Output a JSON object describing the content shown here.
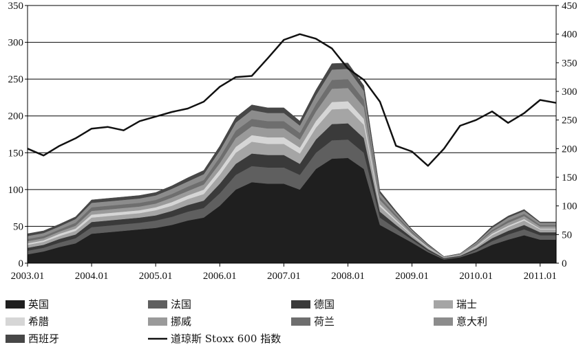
{
  "chart_data": {
    "type": "area",
    "stacked": true,
    "x_ticks": [
      "2003.01",
      "2004.01",
      "2005.01",
      "2006.01",
      "2007.01",
      "2008.01",
      "2009.01",
      "2010.01",
      "2011.01"
    ],
    "x_range": [
      "2003.01",
      "2011.04"
    ],
    "ylim_left": [
      0,
      350
    ],
    "yticks_left": [
      0,
      50,
      100,
      150,
      200,
      250,
      300,
      350
    ],
    "ylim_right": [
      0,
      450
    ],
    "yticks_right": [
      0,
      50,
      100,
      150,
      200,
      250,
      300,
      350,
      400,
      450
    ],
    "grid": "horizontal",
    "legend_position": "bottom",
    "x": [
      "2003.01",
      "2003.04",
      "2003.07",
      "2003.10",
      "2004.01",
      "2004.04",
      "2004.07",
      "2004.10",
      "2005.01",
      "2005.04",
      "2005.07",
      "2005.10",
      "2006.01",
      "2006.04",
      "2006.07",
      "2006.10",
      "2007.01",
      "2007.04",
      "2007.07",
      "2007.10",
      "2008.01",
      "2008.04",
      "2008.07",
      "2008.10",
      "2009.01",
      "2009.04",
      "2009.07",
      "2009.10",
      "2010.01",
      "2010.04",
      "2010.07",
      "2010.10",
      "2011.01",
      "2011.04"
    ],
    "series": [
      {
        "name": "英国",
        "color": "#1f1f1f",
        "values": [
          12,
          16,
          22,
          27,
          40,
          42,
          44,
          46,
          48,
          52,
          58,
          62,
          78,
          100,
          110,
          108,
          108,
          100,
          128,
          142,
          143,
          128,
          52,
          40,
          28,
          15,
          5,
          8,
          15,
          25,
          32,
          38,
          32,
          32
        ]
      },
      {
        "name": "法国",
        "color": "#5f5f5f",
        "values": [
          5,
          5,
          6,
          7,
          9,
          9,
          9,
          9,
          10,
          11,
          12,
          13,
          17,
          20,
          22,
          22,
          22,
          20,
          22,
          25,
          25,
          22,
          10,
          7,
          4,
          2,
          1,
          1,
          3,
          5,
          7,
          8,
          6,
          6
        ]
      },
      {
        "name": "德国",
        "color": "#3a3a3a",
        "values": [
          4,
          4,
          5,
          5,
          7,
          7,
          7,
          7,
          7,
          8,
          9,
          10,
          13,
          15,
          17,
          17,
          17,
          15,
          18,
          22,
          22,
          20,
          8,
          5,
          3,
          2,
          1,
          1,
          2,
          4,
          5,
          6,
          4,
          4
        ]
      },
      {
        "name": "瑞士",
        "color": "#a5a5a5",
        "values": [
          4,
          4,
          4,
          5,
          6,
          6,
          6,
          6,
          7,
          7,
          8,
          9,
          12,
          15,
          16,
          15,
          15,
          14,
          16,
          20,
          20,
          18,
          7,
          5,
          3,
          2,
          1,
          1,
          2,
          4,
          5,
          6,
          4,
          4
        ]
      },
      {
        "name": "希腊",
        "color": "#d6d6d6",
        "values": [
          2,
          2,
          3,
          3,
          4,
          4,
          4,
          4,
          4,
          5,
          5,
          6,
          7,
          8,
          9,
          9,
          9,
          8,
          9,
          10,
          10,
          8,
          3,
          2,
          1,
          1,
          0,
          0,
          1,
          2,
          2,
          2,
          1,
          1
        ]
      },
      {
        "name": "挪威",
        "color": "#9a9a9a",
        "values": [
          3,
          3,
          3,
          4,
          5,
          5,
          5,
          5,
          5,
          6,
          6,
          7,
          9,
          12,
          12,
          12,
          12,
          11,
          13,
          18,
          18,
          16,
          6,
          4,
          2,
          1,
          1,
          1,
          2,
          3,
          4,
          4,
          3,
          3
        ]
      },
      {
        "name": "荷兰",
        "color": "#6e6e6e",
        "values": [
          3,
          3,
          3,
          4,
          5,
          5,
          5,
          5,
          5,
          5,
          6,
          6,
          8,
          10,
          10,
          10,
          10,
          9,
          10,
          12,
          12,
          10,
          4,
          3,
          2,
          1,
          0,
          0,
          1,
          2,
          3,
          3,
          2,
          2
        ]
      },
      {
        "name": "意大利",
        "color": "#8c8c8c",
        "values": [
          4,
          4,
          4,
          5,
          6,
          6,
          6,
          6,
          6,
          7,
          7,
          8,
          9,
          11,
          12,
          11,
          11,
          10,
          12,
          14,
          14,
          12,
          5,
          3,
          2,
          1,
          0,
          1,
          2,
          3,
          4,
          4,
          3,
          3
        ]
      },
      {
        "name": "西班牙",
        "color": "#474747",
        "values": [
          3,
          3,
          3,
          3,
          4,
          4,
          4,
          4,
          4,
          4,
          5,
          5,
          6,
          7,
          7,
          7,
          7,
          6,
          7,
          8,
          8,
          7,
          3,
          2,
          1,
          1,
          0,
          0,
          1,
          2,
          2,
          2,
          1,
          1
        ]
      }
    ],
    "line_series": {
      "name": "道琼斯 Stoxx 600 指数",
      "color": "#111111",
      "axis": "right",
      "values": [
        200,
        188,
        205,
        218,
        235,
        238,
        232,
        248,
        256,
        264,
        270,
        282,
        308,
        325,
        327,
        358,
        390,
        400,
        392,
        375,
        340,
        320,
        282,
        205,
        195,
        170,
        200,
        240,
        250,
        265,
        245,
        262,
        285,
        280
      ]
    }
  }
}
